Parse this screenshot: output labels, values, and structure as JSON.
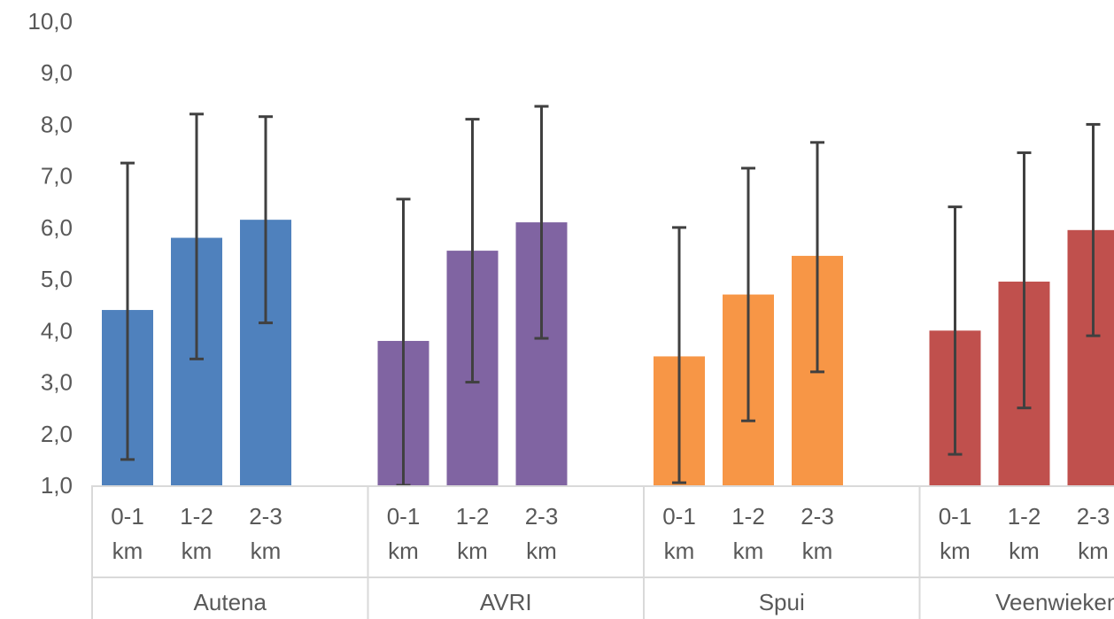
{
  "chart_data": {
    "type": "bar",
    "title": "",
    "xlabel": "",
    "ylabel": "",
    "ylim": [
      1,
      10
    ],
    "yticks": [
      "1,0",
      "2,0",
      "3,0",
      "4,0",
      "5,0",
      "6,0",
      "7,0",
      "8,0",
      "9,0",
      "10,0"
    ],
    "grid": false,
    "groups": [
      {
        "name": "Autena",
        "color": "#4f81bd",
        "bars": [
          {
            "label_top": "0-1",
            "label_bottom": "km",
            "value": 4.4,
            "err_low": 1.5,
            "err_high": 7.25
          },
          {
            "label_top": "1-2",
            "label_bottom": "km",
            "value": 5.8,
            "err_low": 3.45,
            "err_high": 8.2
          },
          {
            "label_top": "2-3",
            "label_bottom": "km",
            "value": 6.15,
            "err_low": 4.15,
            "err_high": 8.15
          }
        ]
      },
      {
        "name": "AVRI",
        "color": "#8064a2",
        "bars": [
          {
            "label_top": "0-1",
            "label_bottom": "km",
            "value": 3.8,
            "err_low": 1.0,
            "err_high": 6.55
          },
          {
            "label_top": "1-2",
            "label_bottom": "km",
            "value": 5.55,
            "err_low": 3.0,
            "err_high": 8.1
          },
          {
            "label_top": "2-3",
            "label_bottom": "km",
            "value": 6.1,
            "err_low": 3.85,
            "err_high": 8.35
          }
        ]
      },
      {
        "name": "Spui",
        "color": "#f79646",
        "bars": [
          {
            "label_top": "0-1",
            "label_bottom": "km",
            "value": 3.5,
            "err_low": 1.05,
            "err_high": 6.0
          },
          {
            "label_top": "1-2",
            "label_bottom": "km",
            "value": 4.7,
            "err_low": 2.25,
            "err_high": 7.15
          },
          {
            "label_top": "2-3",
            "label_bottom": "km",
            "value": 5.45,
            "err_low": 3.2,
            "err_high": 7.65
          }
        ]
      },
      {
        "name": "Veenwieken",
        "color": "#c0504d",
        "bars": [
          {
            "label_top": "0-1",
            "label_bottom": "km",
            "value": 4.0,
            "err_low": 1.6,
            "err_high": 6.4
          },
          {
            "label_top": "1-2",
            "label_bottom": "km",
            "value": 4.95,
            "err_low": 2.5,
            "err_high": 7.45
          },
          {
            "label_top": "2-3",
            "label_bottom": "km",
            "value": 5.95,
            "err_low": 3.9,
            "err_high": 8.0
          }
        ]
      }
    ]
  }
}
